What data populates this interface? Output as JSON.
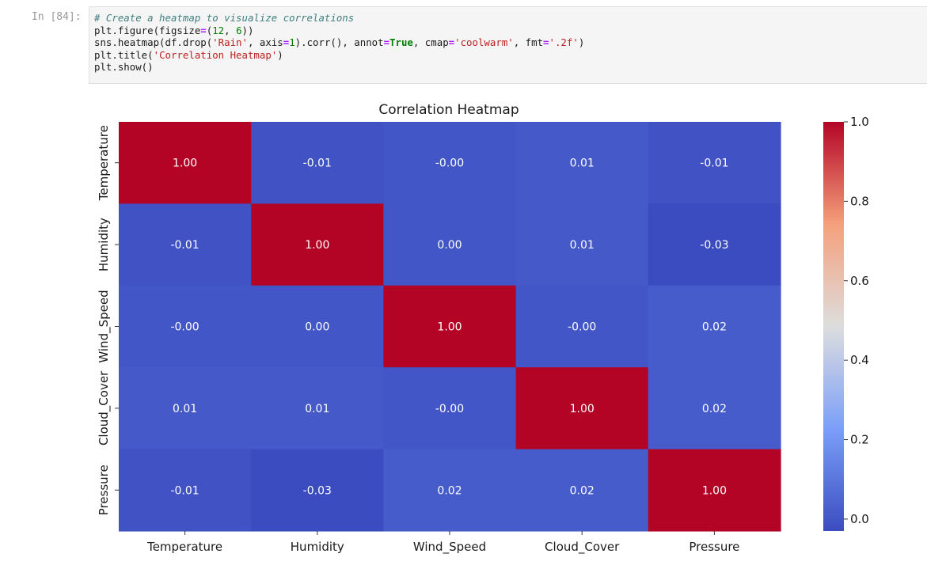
{
  "cell": {
    "prompt": "In [84]:",
    "code_lines": [
      "# Create a heatmap to visualize correlations",
      "plt.figure(figsize=(12, 6))",
      "sns.heatmap(df.drop('Rain', axis=1).corr(), annot=True, cmap='coolwarm', fmt='.2f')",
      "plt.title('Correlation Heatmap')",
      "plt.show()"
    ]
  },
  "chart_data": {
    "type": "heatmap",
    "title": "Correlation Heatmap",
    "x_labels": [
      "Temperature",
      "Humidity",
      "Wind_Speed",
      "Cloud_Cover",
      "Pressure"
    ],
    "y_labels": [
      "Temperature",
      "Humidity",
      "Wind_Speed",
      "Cloud_Cover",
      "Pressure"
    ],
    "values": [
      [
        1.0,
        -0.01,
        -0.0,
        0.01,
        -0.01
      ],
      [
        -0.01,
        1.0,
        0.0,
        0.01,
        -0.03
      ],
      [
        -0.0,
        0.0,
        1.0,
        -0.0,
        0.02
      ],
      [
        0.01,
        0.01,
        -0.0,
        1.0,
        0.02
      ],
      [
        -0.01,
        -0.03,
        0.02,
        0.02,
        1.0
      ]
    ],
    "annotations": [
      [
        "1.00",
        "-0.01",
        "-0.00",
        "0.01",
        "-0.01"
      ],
      [
        "-0.01",
        "1.00",
        "0.00",
        "0.01",
        "-0.03"
      ],
      [
        "-0.00",
        "0.00",
        "1.00",
        "-0.00",
        "0.02"
      ],
      [
        "0.01",
        "0.01",
        "-0.00",
        "1.00",
        "0.02"
      ],
      [
        "-0.01",
        "-0.03",
        "0.02",
        "0.02",
        "1.00"
      ]
    ],
    "colormap": "coolwarm",
    "vmin": -0.03,
    "vmax": 1.0,
    "colorbar_ticks": [
      0.0,
      0.2,
      0.4,
      0.6,
      0.8,
      1.0
    ],
    "colorbar_tick_labels": [
      "0.0",
      "0.2",
      "0.4",
      "0.6",
      "0.8",
      "1.0"
    ]
  }
}
